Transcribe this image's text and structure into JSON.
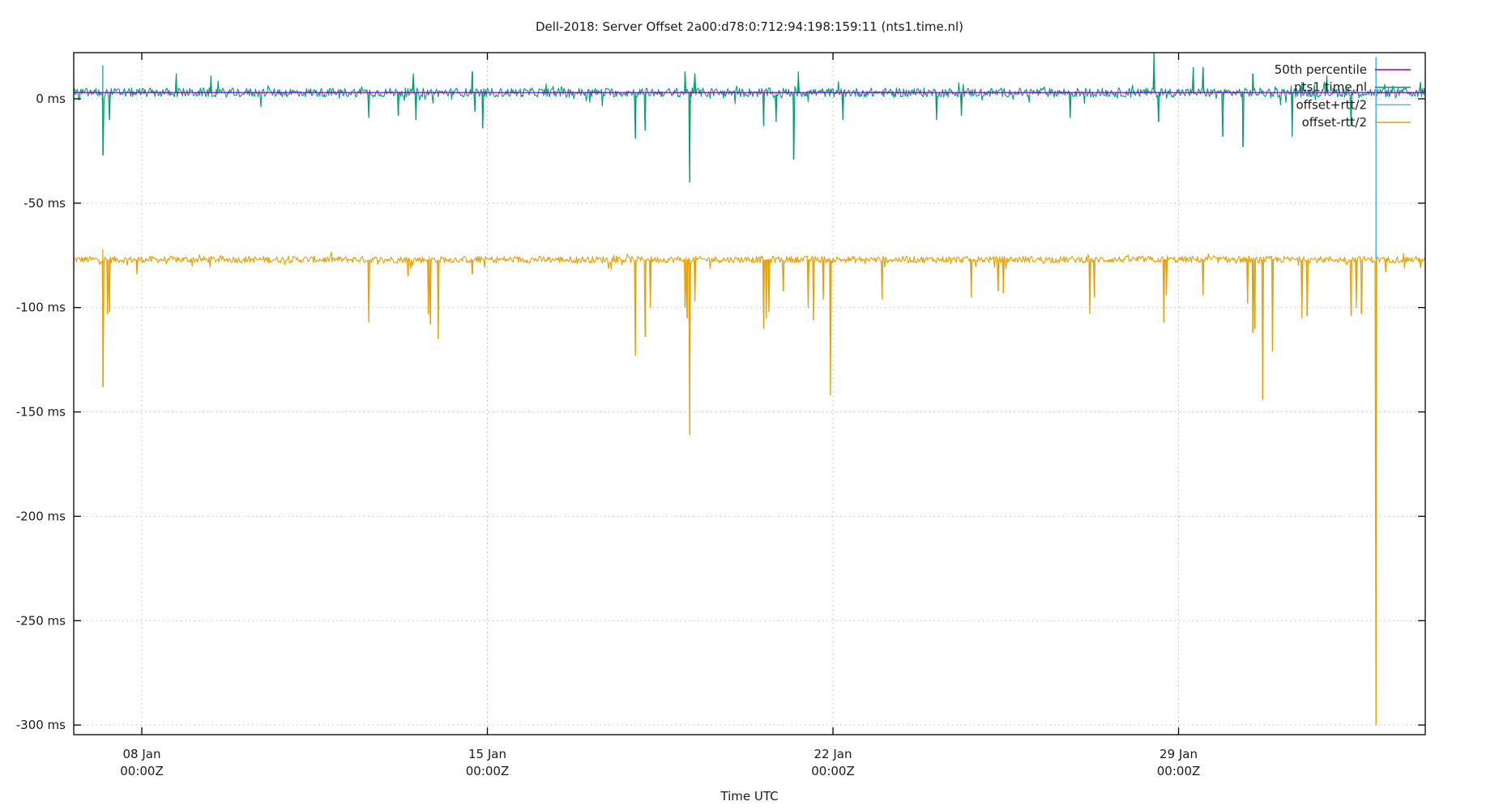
{
  "chart_data": {
    "type": "line",
    "title": "Dell-2018: Server Offset 2a00:d78:0:712:94:198:159:11 (nts1.time.nl)",
    "xlabel": "Time UTC",
    "ylabel": "",
    "ylim": [
      -303,
      20
    ],
    "y_ticks": [
      {
        "value": 0,
        "label": "0 ms"
      },
      {
        "value": -50,
        "label": "-50 ms"
      },
      {
        "value": -100,
        "label": "-100 ms"
      },
      {
        "value": -150,
        "label": "-150 ms"
      },
      {
        "value": -200,
        "label": "-200 ms"
      },
      {
        "value": -250,
        "label": "-250 ms"
      },
      {
        "value": -300,
        "label": "-300 ms"
      }
    ],
    "x_ticks": [
      {
        "day": 8,
        "line1": "08 Jan",
        "line2": "00:00Z"
      },
      {
        "day": 15,
        "line1": "15 Jan",
        "line2": "00:00Z"
      },
      {
        "day": 22,
        "line1": "22 Jan",
        "line2": "00:00Z"
      },
      {
        "day": 29,
        "line1": "29 Jan",
        "line2": "00:00Z"
      }
    ],
    "xlim_days": [
      7.2,
      34.6
    ],
    "grid": true,
    "legend_position": "top-right",
    "series": [
      {
        "name": "50th percentile",
        "color": "#9400d3",
        "kind": "constant",
        "value": 3
      },
      {
        "name": "nts1.time.nl",
        "color": "#009e73",
        "kind": "noisy",
        "baseline": 3,
        "noise": 2.2,
        "spikes": [
          [
            7.21,
            16
          ],
          [
            7.21,
            -27
          ],
          [
            7.35,
            -10
          ],
          [
            8.7,
            12
          ],
          [
            9.4,
            11
          ],
          [
            13.5,
            12
          ],
          [
            13.55,
            -10
          ],
          [
            14.7,
            13
          ],
          [
            14.75,
            -6
          ],
          [
            14.9,
            -14
          ],
          [
            12.6,
            -9
          ],
          [
            13.2,
            -8
          ],
          [
            18.0,
            -19
          ],
          [
            18.2,
            -15
          ],
          [
            19.0,
            13
          ],
          [
            19.1,
            -40
          ],
          [
            19.2,
            12
          ],
          [
            20.6,
            -13
          ],
          [
            20.85,
            -11
          ],
          [
            21.3,
            13
          ],
          [
            21.2,
            -29
          ],
          [
            22.2,
            -10
          ],
          [
            24.1,
            -10
          ],
          [
            24.6,
            -8
          ],
          [
            26.8,
            -9
          ],
          [
            28.5,
            22
          ],
          [
            28.6,
            -11
          ],
          [
            29.3,
            15
          ],
          [
            29.5,
            15
          ],
          [
            29.9,
            -18
          ],
          [
            30.3,
            -23
          ],
          [
            30.5,
            12
          ],
          [
            31.3,
            -18
          ],
          [
            31.5,
            8
          ],
          [
            32.0,
            11
          ],
          [
            32.5,
            -13
          ],
          [
            33.9,
            8
          ]
        ]
      },
      {
        "name": "offset+rtt/2",
        "color": "#56b4e9",
        "kind": "vline",
        "day": 33.0,
        "from": 20,
        "to": -77
      },
      {
        "name": "offset-rtt/2",
        "color": "#e69f00",
        "kind": "noisy",
        "baseline": -77,
        "noise": 1.6,
        "spikes": [
          [
            7.21,
            -72
          ],
          [
            7.21,
            -138
          ],
          [
            7.3,
            -103
          ],
          [
            7.35,
            -102
          ],
          [
            7.9,
            -84
          ],
          [
            12.6,
            -107
          ],
          [
            13.8,
            -103
          ],
          [
            13.85,
            -108
          ],
          [
            14.0,
            -115
          ],
          [
            13.4,
            -85
          ],
          [
            14.7,
            -84
          ],
          [
            18.0,
            -123
          ],
          [
            18.2,
            -114
          ],
          [
            18.3,
            -100
          ],
          [
            19.0,
            -100
          ],
          [
            19.05,
            -105
          ],
          [
            19.1,
            -161
          ],
          [
            19.2,
            -97
          ],
          [
            20.6,
            -110
          ],
          [
            20.65,
            -105
          ],
          [
            20.7,
            -102
          ],
          [
            21.0,
            -92
          ],
          [
            21.5,
            -100
          ],
          [
            21.6,
            -106
          ],
          [
            21.95,
            -142
          ],
          [
            21.8,
            -96
          ],
          [
            23.0,
            -96
          ],
          [
            24.8,
            -95
          ],
          [
            25.35,
            -92
          ],
          [
            25.45,
            -93
          ],
          [
            27.2,
            -103
          ],
          [
            27.3,
            -95
          ],
          [
            28.7,
            -107
          ],
          [
            28.75,
            -94
          ],
          [
            29.5,
            -94
          ],
          [
            30.4,
            -98
          ],
          [
            30.5,
            -112
          ],
          [
            30.55,
            -110
          ],
          [
            30.7,
            -144
          ],
          [
            30.9,
            -121
          ],
          [
            31.5,
            -105
          ],
          [
            31.6,
            -104
          ],
          [
            32.5,
            -104
          ],
          [
            32.6,
            -100
          ],
          [
            32.7,
            -103
          ],
          [
            33.0,
            -300
          ],
          [
            33.2,
            -83
          ],
          [
            33.9,
            -81
          ]
        ]
      }
    ]
  },
  "legend": {
    "items": [
      {
        "label": "50th percentile",
        "color": "#9400d3"
      },
      {
        "label": "nts1.time.nl",
        "color": "#009e73"
      },
      {
        "label": "offset+rtt/2",
        "color": "#56b4e9"
      },
      {
        "label": "offset-rtt/2",
        "color": "#e69f00"
      }
    ]
  }
}
